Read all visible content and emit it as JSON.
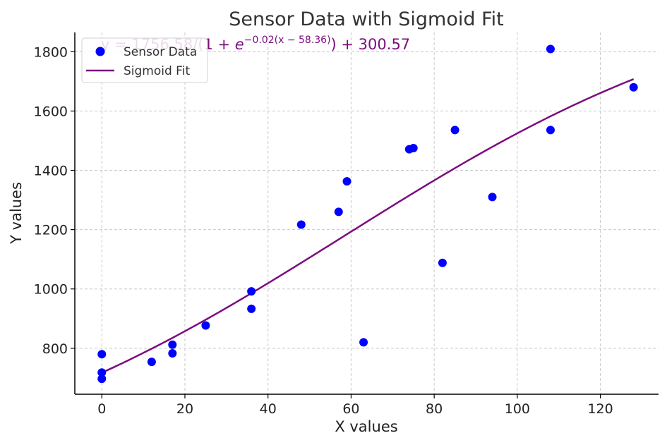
{
  "chart_data": {
    "type": "scatter",
    "title": "Sensor Data with Sigmoid Fit",
    "xlabel": "X values",
    "ylabel": "Y values",
    "xlim": [
      -6.5,
      134
    ],
    "ylim": [
      645,
      1865
    ],
    "x_ticks": [
      0,
      20,
      40,
      60,
      80,
      100,
      120
    ],
    "y_ticks": [
      800,
      1000,
      1200,
      1400,
      1600,
      1800
    ],
    "grid": true,
    "legend_position": "top-left",
    "annotation": {
      "prefix": "y = 1756.58/(1 + ",
      "base": "e",
      "exponent": "−0.02(x − 58.36)",
      "suffix": ") + 300.57",
      "color": "#7b0d7f"
    },
    "series": [
      {
        "name": "Sensor Data",
        "kind": "scatter",
        "color": "#0000ff",
        "points": [
          [
            0,
            780
          ],
          [
            0,
            718
          ],
          [
            0,
            697
          ],
          [
            12,
            754
          ],
          [
            17,
            812
          ],
          [
            17,
            783
          ],
          [
            25,
            877
          ],
          [
            36,
            992
          ],
          [
            36,
            933
          ],
          [
            48,
            1217
          ],
          [
            57,
            1260
          ],
          [
            59,
            1363
          ],
          [
            63,
            820
          ],
          [
            74,
            1471
          ],
          [
            75,
            1475
          ],
          [
            82,
            1088
          ],
          [
            85,
            1536
          ],
          [
            94,
            1310
          ],
          [
            108,
            1809
          ],
          [
            108,
            1536
          ],
          [
            128,
            1680
          ]
        ]
      },
      {
        "name": "Sigmoid Fit",
        "kind": "line",
        "color": "#7b0d7f",
        "fit": {
          "a": 1756.58,
          "k": 0.02,
          "x0": 58.36,
          "c": 300.57,
          "x_min": 0,
          "x_max": 128
        }
      }
    ]
  }
}
